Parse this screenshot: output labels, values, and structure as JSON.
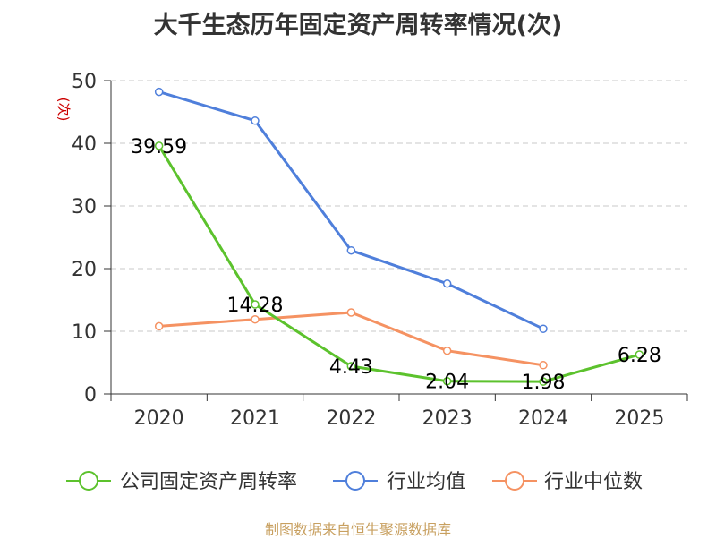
{
  "chart_data": {
    "type": "line",
    "title": "大千生态历年固定资产周转率情况(次)",
    "ylabel": "(次)",
    "xlabel": "",
    "ylim": [
      0,
      50
    ],
    "yticks": [
      0,
      10,
      20,
      30,
      40,
      50
    ],
    "categories": [
      "2020",
      "2021",
      "2022",
      "2023",
      "2024",
      "2025"
    ],
    "grid": true,
    "legend_position": "bottom",
    "series": [
      {
        "name": "公司固定资产周转率",
        "color": "#5cc22d",
        "values": [
          39.59,
          14.28,
          4.43,
          2.04,
          1.98,
          6.28
        ],
        "labels": [
          "39.59",
          "14.28",
          "4.43",
          "2.04",
          "1.98",
          "6.28"
        ]
      },
      {
        "name": "行业均值",
        "color": "#4f7fdb",
        "values": [
          48.2,
          43.6,
          22.9,
          17.6,
          10.4,
          null
        ]
      },
      {
        "name": "行业中位数",
        "color": "#f59262",
        "values": [
          10.8,
          11.9,
          13.0,
          6.9,
          4.6,
          null
        ]
      }
    ]
  },
  "footer": "制图数据来自恒生聚源数据库"
}
